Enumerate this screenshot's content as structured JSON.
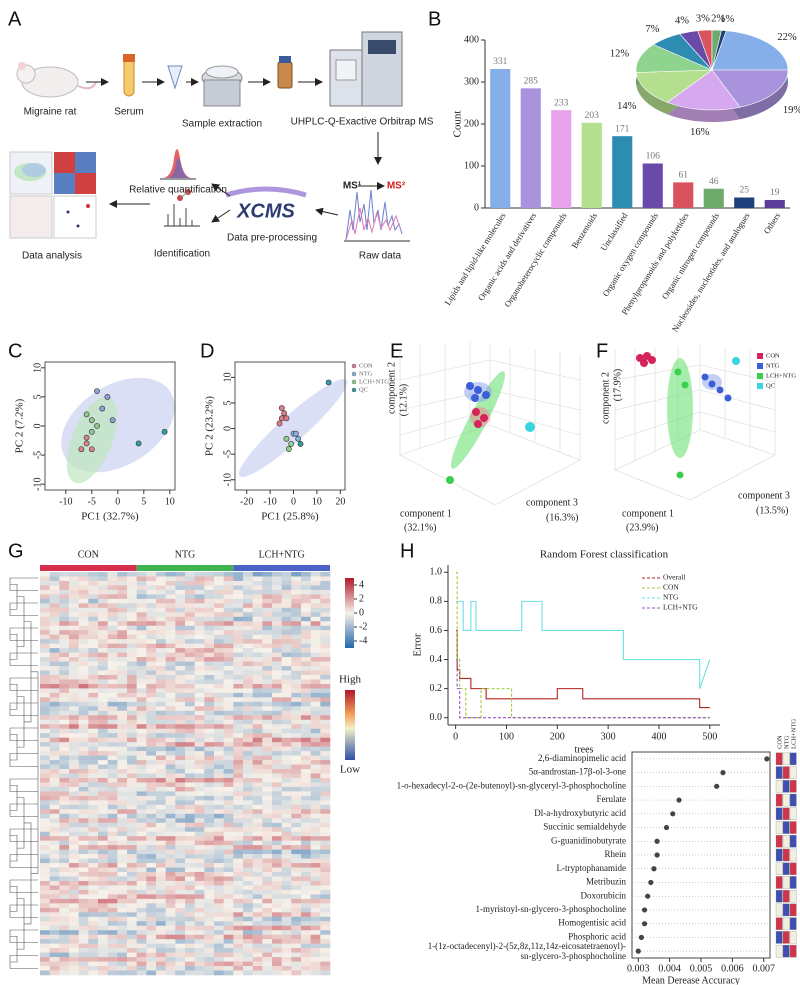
{
  "panel_labels": [
    "A",
    "B",
    "C",
    "D",
    "E",
    "F",
    "G",
    "H"
  ],
  "workflow": {
    "steps": [
      "Migraine rat",
      "Serum",
      "Sample extraction",
      "UHPLC-Q-Exactive Orbitrap MS",
      "Raw data",
      "Data pre-processing",
      "Relative quantification",
      "Identification",
      "Data analysis"
    ],
    "software": "XCMS",
    "ms1": "MS¹",
    "ms2": "MS²"
  },
  "panels_3d": [
    {
      "axis1": "component 1",
      "pct1": "(32.1%)",
      "axis2": "component 2",
      "pct2": "(12.1%)",
      "axis3": "component 3",
      "pct3": "(16.3%)"
    },
    {
      "axis1": "component 1",
      "pct1": "(23.9%)",
      "axis2": "component 2",
      "pct2": "(17.9%)",
      "axis3": "component 3",
      "pct3": "(13.5%)",
      "legend": [
        {
          "name": "CON",
          "color": "#d6245a"
        },
        {
          "name": "NTG",
          "color": "#3b5fd6"
        },
        {
          "name": "LCH+NTG",
          "color": "#3ccf4e"
        },
        {
          "name": "QC",
          "color": "#38d4e0"
        }
      ]
    }
  ],
  "chart_data": [
    {
      "type": "bar",
      "ylabel": "Count",
      "categories": [
        "Lipids and lipid-like molecules",
        "Organic acids and derivatives",
        "Organoheterocyclic compounds",
        "Benzenoids",
        "Unclassified",
        "Organic oxygen compounds",
        "Phenylpropanoids and polyketides",
        "Organic nitrogen compounds",
        "Nucleosides, nucleotides, and analogues",
        "Others"
      ],
      "values": [
        331,
        285,
        233,
        203,
        171,
        106,
        61,
        46,
        25,
        19
      ],
      "colors": [
        "#86aee8",
        "#a893dc",
        "#e6a3ec",
        "#b4df8f",
        "#2e8cb3",
        "#6a4aa8",
        "#d9535f",
        "#6dab6d",
        "#1f3f7a",
        "#5b3c9c"
      ],
      "ylim": [
        0,
        400
      ],
      "yticks": [
        0,
        100,
        200,
        300,
        400
      ]
    },
    {
      "type": "pie",
      "values": [
        22,
        19,
        16,
        14,
        12,
        7,
        4,
        3,
        2,
        1
      ],
      "value_labels": [
        "22%",
        "19%",
        "16%",
        "14%",
        "12%",
        "7%",
        "4%",
        "3%",
        "2%",
        "1%"
      ],
      "colors": [
        "#86aee8",
        "#a893dc",
        "#d6a8ef",
        "#b4df8f",
        "#8ed48e",
        "#2e8cb3",
        "#6a4aa8",
        "#d9535f",
        "#6dab6d",
        "#1f3f7a"
      ]
    },
    {
      "type": "scatter",
      "xlabel": "PC1 (32.7%)",
      "ylabel": "PC 2 (7.2%)",
      "xlim": [
        -14,
        11
      ],
      "ylim": [
        -11,
        11
      ],
      "xticks": [
        -10,
        -5,
        0,
        5,
        10
      ],
      "yticks": [
        -10,
        -5,
        0,
        5,
        10
      ],
      "series": [
        {
          "color": "#d9838f",
          "x": [
            -6,
            -7,
            -5,
            -6
          ],
          "values": [
            -3,
            -4,
            -4,
            -2
          ]
        },
        {
          "color": "#8fc98f",
          "x": [
            -5,
            -4,
            -5,
            -6
          ],
          "values": [
            -1,
            0,
            1,
            2
          ]
        },
        {
          "color": "#8aa0d6",
          "x": [
            -3,
            -2,
            -4,
            -1
          ],
          "values": [
            3,
            5,
            6,
            1
          ]
        },
        {
          "color": "#2f9e9e",
          "x": [
            9,
            4
          ],
          "values": [
            -1,
            -3
          ]
        }
      ]
    },
    {
      "type": "scatter",
      "xlabel": "PC1 (25.8%)",
      "ylabel": "PC 2 (23.2%)",
      "xlim": [
        -25,
        22
      ],
      "ylim": [
        -12,
        13
      ],
      "xticks": [
        -20,
        -10,
        0,
        10,
        20
      ],
      "yticks": [
        -10,
        -5,
        0,
        5,
        10
      ],
      "series": [
        {
          "name": "CON",
          "color": "#e07a8a",
          "x": [
            -5,
            -4,
            -6,
            -3,
            -5
          ],
          "values": [
            2,
            3,
            1,
            2,
            4
          ]
        },
        {
          "name": "NTG",
          "color": "#8ab0e0",
          "x": [
            0,
            2,
            1
          ],
          "values": [
            -1,
            -2,
            -1
          ]
        },
        {
          "name": "LCH+NTG",
          "color": "#8fd08f",
          "x": [
            -3,
            -1,
            -2
          ],
          "values": [
            -2,
            -3,
            -4
          ]
        },
        {
          "name": "QC",
          "color": "#2f9e9e",
          "x": [
            15,
            3
          ],
          "values": [
            9,
            -3
          ]
        }
      ]
    },
    {
      "type": "heatmap",
      "groups": [
        "CON",
        "NTG",
        "LCH+NTG"
      ],
      "group_colors": [
        "#d62f4d",
        "#3fb34f",
        "#4b63c9"
      ],
      "zlim": [
        -5,
        5
      ],
      "zticks": [
        4,
        2,
        0,
        -2,
        -4
      ],
      "legend_labels": [
        "High",
        "Low"
      ]
    },
    {
      "type": "line",
      "title": "Random Forest classification",
      "xlabel": "trees",
      "ylabel": "Error",
      "xlim": [
        -15,
        520
      ],
      "ylim": [
        -0.05,
        1.05
      ],
      "xticks": [
        0,
        100,
        200,
        300,
        400,
        500
      ],
      "yticks": [
        {
          "value": 0,
          "label": "0.0"
        },
        0.2,
        0.4,
        0.6,
        0.8,
        {
          "value": 1,
          "label": "1.0"
        }
      ],
      "series": [
        {
          "name": "Overall",
          "color": "#b22222",
          "x": [
            1,
            3,
            3,
            8,
            8,
            30,
            30,
            60,
            60,
            200,
            200,
            250,
            250,
            480,
            480,
            500
          ],
          "values": [
            0.6,
            0.6,
            0.33,
            0.33,
            0.27,
            0.27,
            0.2,
            0.2,
            0.13,
            0.13,
            0.2,
            0.2,
            0.13,
            0.13,
            0.07,
            0.07
          ]
        },
        {
          "name": "CON",
          "color": "#9acd32",
          "dashed": true,
          "x": [
            1,
            3,
            3,
            8,
            8,
            20,
            20,
            50,
            50,
            110,
            110,
            120,
            120,
            500
          ],
          "values": [
            1.0,
            1.0,
            0.4,
            0.4,
            0.2,
            0.2,
            0.0,
            0.0,
            0.2,
            0.2,
            0.0,
            0.0,
            0.0,
            0.0
          ]
        },
        {
          "name": "NTG",
          "color": "#6fe0e0",
          "x": [
            1,
            15,
            15,
            30,
            30,
            40,
            40,
            130,
            130,
            170,
            170,
            330,
            330,
            480,
            480,
            500
          ],
          "values": [
            0.8,
            0.8,
            0.6,
            0.6,
            0.8,
            0.8,
            0.6,
            0.6,
            0.8,
            0.8,
            0.6,
            0.6,
            0.4,
            0.4,
            0.2,
            0.4
          ]
        },
        {
          "name": "LCH+NTG",
          "color": "#9b4dca",
          "dashed": true,
          "x": [
            1,
            3,
            3,
            8,
            8,
            500
          ],
          "values": [
            0.4,
            0.4,
            0.2,
            0.2,
            0.0,
            0.0
          ]
        }
      ]
    },
    {
      "type": "dot",
      "xlabel": "Mean Derease Accuracy",
      "xlim": [
        0.0028,
        0.0072
      ],
      "xticks": [
        0.003,
        0.004,
        0.005,
        0.006,
        0.007
      ],
      "group_labels": [
        "CON",
        "NTG",
        "LCH+NTG"
      ],
      "categories": [
        "2,6-diaminopimelic acid",
        "5α-androstan-17β-ol-3-one",
        "1-o-hexadecyl-2-o-(2e-butenoyl)-sn-glyceryl-3-phosphocholine",
        "Ferulate",
        "Dl-a-hydroxybutyric acid",
        "Succinic semialdehyde",
        "G-guanidinobutyrate",
        "Rhein",
        "L-tryptophanamide",
        "Metribuzin",
        "Doxorubicin",
        "1-myristoyl-sn-glycero-3-phosphocholine",
        "Homogentisic acid",
        "Phosphoric acid",
        [
          "1-(1z-octadecenyl)-2-(5z,8z,11z,14z-eicosatetraenoyl)-",
          "sn-glycero-3-phosphocholine"
        ]
      ],
      "values": [
        0.0071,
        0.0057,
        0.0055,
        0.0043,
        0.0041,
        0.0039,
        0.0036,
        0.0036,
        0.0035,
        0.0034,
        0.0033,
        0.0032,
        0.0032,
        0.0031,
        0.003
      ]
    }
  ]
}
